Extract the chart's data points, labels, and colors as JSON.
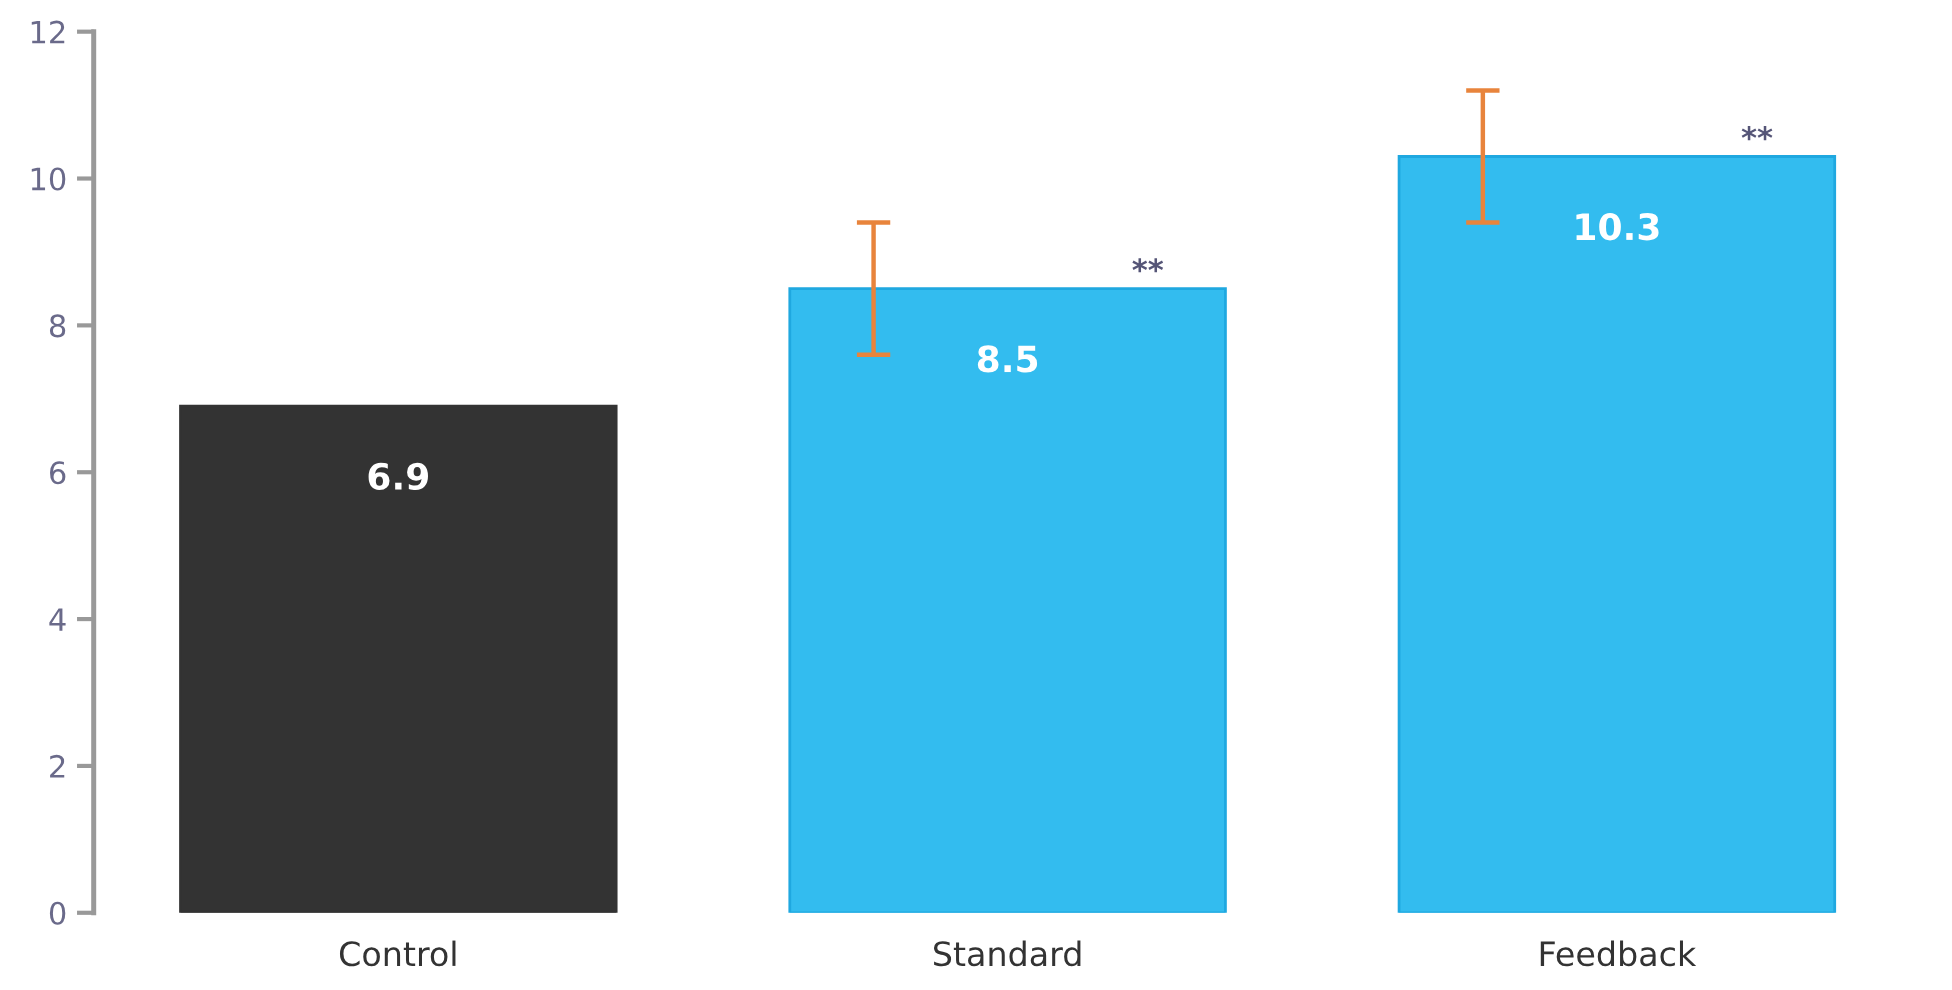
{
  "chart_data": {
    "type": "bar",
    "categories": [
      "Control",
      "Standard",
      "Feedback"
    ],
    "values": [
      6.9,
      8.5,
      10.3
    ],
    "colors": [
      "#333333",
      "#33bcef",
      "#33bcef"
    ],
    "errors": [
      null,
      0.9,
      0.9
    ],
    "ylim": [
      0,
      12
    ],
    "yticks": [
      0,
      2,
      4,
      6,
      8,
      10,
      12
    ],
    "data_labels": true,
    "grid": false,
    "legend": false,
    "annotations": [
      "**",
      "**"
    ]
  }
}
